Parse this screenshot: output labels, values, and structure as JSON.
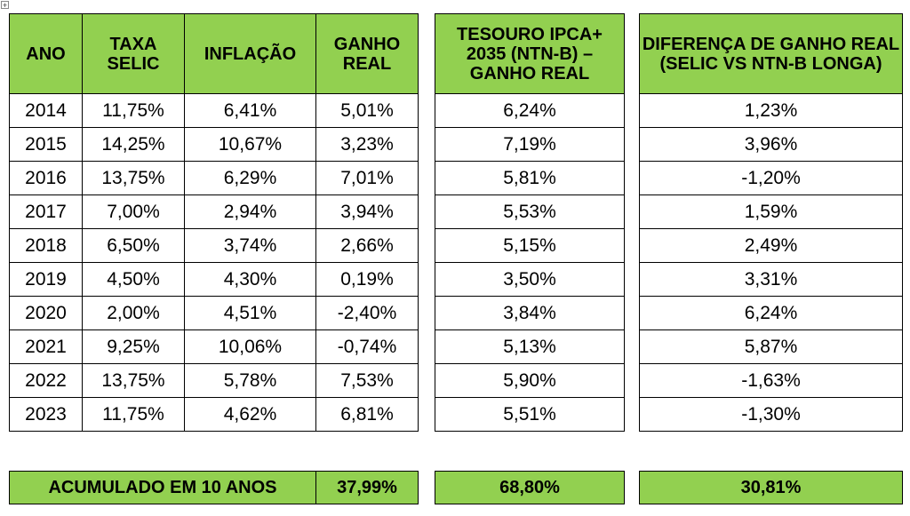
{
  "headers": {
    "ano": "ANO",
    "selic": "TAXA SELIC",
    "inflacao": "INFLAÇÃO",
    "ganho_real": "GANHO REAL",
    "ntnb": "TESOURO IPCA+ 2035 (NTN-B) – GANHO REAL",
    "diferenca": "DIFERENÇA DE GANHO REAL (SELIC VS NTN-B LONGA)"
  },
  "rows": [
    {
      "ano": "2014",
      "selic": "11,75%",
      "inflacao": "6,41%",
      "ganho": "5,01%",
      "ntnb": "6,24%",
      "dif": "1,23%"
    },
    {
      "ano": "2015",
      "selic": "14,25%",
      "inflacao": "10,67%",
      "ganho": "3,23%",
      "ntnb": "7,19%",
      "dif": "3,96%"
    },
    {
      "ano": "2016",
      "selic": "13,75%",
      "inflacao": "6,29%",
      "ganho": "7,01%",
      "ntnb": "5,81%",
      "dif": "-1,20%"
    },
    {
      "ano": "2017",
      "selic": "7,00%",
      "inflacao": "2,94%",
      "ganho": "3,94%",
      "ntnb": "5,53%",
      "dif": "1,59%"
    },
    {
      "ano": "2018",
      "selic": "6,50%",
      "inflacao": "3,74%",
      "ganho": "2,66%",
      "ntnb": "5,15%",
      "dif": "2,49%"
    },
    {
      "ano": "2019",
      "selic": "4,50%",
      "inflacao": "4,30%",
      "ganho": "0,19%",
      "ntnb": "3,50%",
      "dif": "3,31%"
    },
    {
      "ano": "2020",
      "selic": "2,00%",
      "inflacao": "4,51%",
      "ganho": "-2,40%",
      "ntnb": "3,84%",
      "dif": "6,24%"
    },
    {
      "ano": "2021",
      "selic": "9,25%",
      "inflacao": "10,06%",
      "ganho": "-0,74%",
      "ntnb": "5,13%",
      "dif": "5,87%"
    },
    {
      "ano": "2022",
      "selic": "13,75%",
      "inflacao": "5,78%",
      "ganho": "7,53%",
      "ntnb": "5,90%",
      "dif": "-1,63%"
    },
    {
      "ano": "2023",
      "selic": "11,75%",
      "inflacao": "4,62%",
      "ganho": "6,81%",
      "ntnb": "5,51%",
      "dif": "-1,30%"
    }
  ],
  "footer": {
    "label": "ACUMULADO EM 10 ANOS",
    "ganho_real": "37,99%",
    "ntnb": "68,80%",
    "diferenca": "30,81%"
  },
  "colors": {
    "header_fill": "#92d050",
    "border": "#000000",
    "background": "#ffffff"
  },
  "icons": {
    "table_handle": "move-handle-icon"
  }
}
